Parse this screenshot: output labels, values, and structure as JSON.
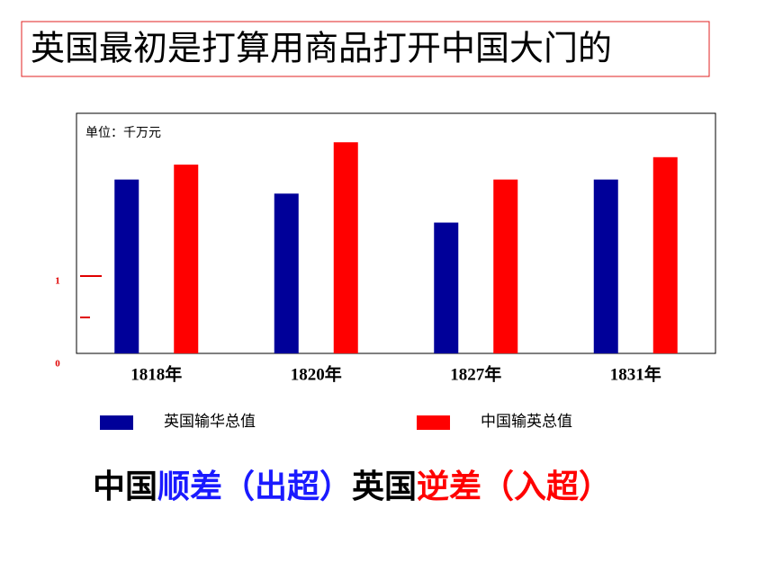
{
  "chart_data": {
    "type": "bar",
    "title": "英国最初是打算用商品打开中国大门的",
    "subtitle": "单位：千万元",
    "categories": [
      "1818年",
      "1820年",
      "1827年",
      "1831年"
    ],
    "series": [
      {
        "name": "英国输华总值",
        "color": "#000099",
        "values": [
          2.1,
          1.93,
          1.58,
          2.1
        ]
      },
      {
        "name": "中国输英总值",
        "color": "#ff0000",
        "values": [
          2.28,
          2.55,
          2.1,
          2.37
        ]
      }
    ],
    "ylim": [
      0,
      2.9
    ],
    "yticks": [
      0,
      1
    ],
    "annotations": [
      {
        "text": "中国",
        "color": "#000000"
      },
      {
        "text": "顺差（出超）",
        "color": "#1a1aff"
      },
      {
        "text": "英国",
        "color": "#000000"
      },
      {
        "text": "逆差（入超）",
        "color": "#ff0000"
      }
    ]
  }
}
